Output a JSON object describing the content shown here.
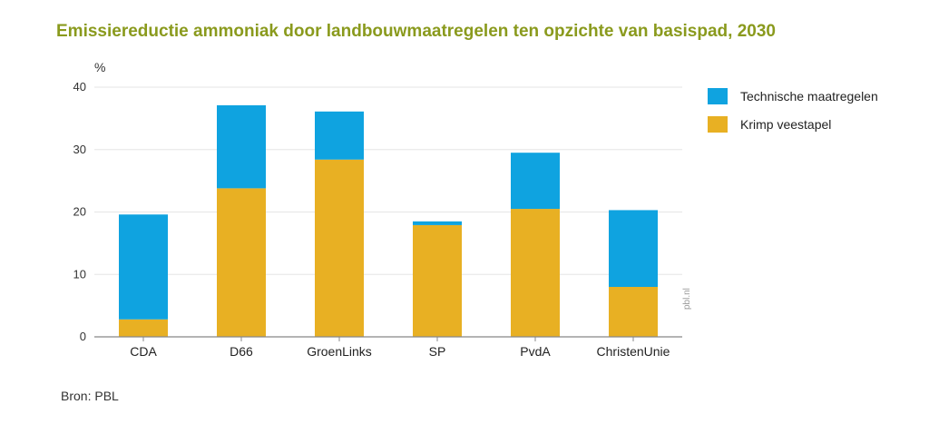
{
  "header": {
    "title": "Emissiereductie ammoniak door landbouwmaatregelen ten opzichte van basispad, 2030",
    "unit": "%"
  },
  "footer": {
    "source": "Bron: PBL",
    "watermark": "pbl.nl"
  },
  "colors": {
    "technische": "#0fa3e0",
    "krimp": "#e8b023",
    "grid": "#e6e6e6",
    "axis": "#888888",
    "title": "#8a9a1d"
  },
  "chart_data": {
    "type": "bar",
    "stacked": true,
    "title": "Emissiereductie ammoniak door landbouwmaatregelen ten opzichte van basispad, 2030",
    "xlabel": "",
    "ylabel": "%",
    "ylim": [
      0,
      40
    ],
    "yticks": [
      0,
      10,
      20,
      30,
      40
    ],
    "grid": true,
    "legend_position": "right",
    "categories": [
      "CDA",
      "D66",
      "GroenLinks",
      "SP",
      "PvdA",
      "ChristenUnie"
    ],
    "series": [
      {
        "name": "Krimp veestapel",
        "color": "#e8b023",
        "values": [
          2.8,
          23.8,
          28.4,
          17.9,
          20.5,
          8.0
        ]
      },
      {
        "name": "Technische maatregelen",
        "color": "#0fa3e0",
        "values": [
          16.8,
          13.3,
          7.7,
          0.6,
          9.0,
          12.3
        ]
      }
    ],
    "legend": [
      "Technische maatregelen",
      "Krimp veestapel"
    ]
  }
}
